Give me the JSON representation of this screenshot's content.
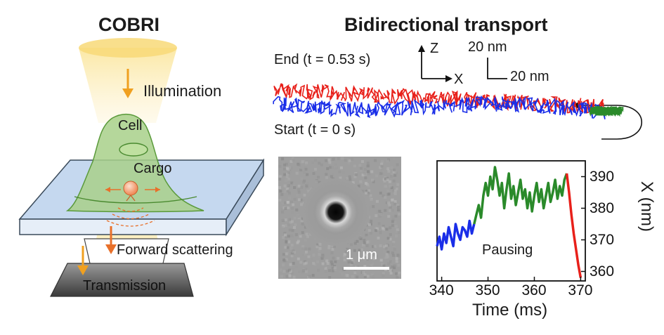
{
  "left_panel": {
    "title": "COBRI",
    "labels": {
      "illumination": "Illumination",
      "cell": "Cell",
      "cargo": "Cargo",
      "forward_scattering": "Forward scattering",
      "transmission": "Transmission"
    },
    "colors": {
      "beam": "#f5c542",
      "arrow": "#f0a020",
      "cell": "#a8d08a",
      "cell_edge": "#5a9a3a",
      "cargo": "#f4a582",
      "scatter": "#e8702a",
      "slide": "#c5d8ef",
      "objective": "#5a5a5a"
    }
  },
  "trajectory_panel": {
    "title": "Bidirectional transport",
    "end_label": "End (t = 0.53 s)",
    "start_label": "Start (t = 0 s)",
    "axes": {
      "z": "Z",
      "x": "X"
    },
    "scale": {
      "vertical": "20 nm",
      "horizontal": "20 nm"
    },
    "colors": {
      "outward": "#e8201a",
      "return": "#1a2ee8",
      "turn": "#2a8a2a"
    }
  },
  "image_panel": {
    "scale_bar": "1 μm"
  },
  "chart_data": {
    "type": "line",
    "xlabel": "Time (ms)",
    "ylabel": "X (nm)",
    "xlim": [
      339,
      371
    ],
    "ylim": [
      357,
      395
    ],
    "xticks": [
      340,
      350,
      360,
      370
    ],
    "yticks": [
      360,
      370,
      380,
      390
    ],
    "annotation": "Pausing",
    "series": [
      {
        "color": "#1a2ee8",
        "x": [
          339.0,
          339.5,
          340.0,
          340.5,
          341.0,
          341.5,
          342.0,
          342.5,
          343.0,
          343.5,
          344.0,
          344.5,
          345.0,
          345.5,
          346.0,
          346.5,
          347.0
        ],
        "y": [
          368,
          371,
          367,
          372,
          369,
          374,
          371,
          368,
          375,
          372,
          370,
          374,
          373,
          371,
          376,
          372,
          375
        ]
      },
      {
        "color": "#2a8a2a",
        "x": [
          347.0,
          347.5,
          348.0,
          348.5,
          349.0,
          349.5,
          350.0,
          350.5,
          351.0,
          351.5,
          352.0,
          352.5,
          353.0,
          353.5,
          354.0,
          354.5,
          355.0,
          355.5,
          356.0,
          356.5,
          357.0,
          357.5,
          358.0,
          358.5,
          359.0,
          359.5,
          360.0,
          360.5,
          361.0,
          361.5,
          362.0,
          362.5,
          363.0,
          363.5,
          364.0,
          364.5,
          365.0,
          365.5,
          366.0,
          366.5,
          367.0
        ],
        "y": [
          375,
          378,
          381,
          377,
          384,
          388,
          384,
          390,
          386,
          393,
          389,
          384,
          388,
          380,
          386,
          391,
          383,
          387,
          381,
          385,
          389,
          383,
          386,
          380,
          385,
          379,
          384,
          388,
          382,
          386,
          380,
          384,
          388,
          382,
          385,
          389,
          383,
          387,
          384,
          389,
          391
        ]
      },
      {
        "color": "#e8201a",
        "x": [
          367.0,
          367.5,
          368.0,
          368.5,
          369.0,
          369.5,
          370.0
        ],
        "y": [
          391,
          385,
          378,
          372,
          367,
          362,
          358
        ]
      }
    ]
  }
}
